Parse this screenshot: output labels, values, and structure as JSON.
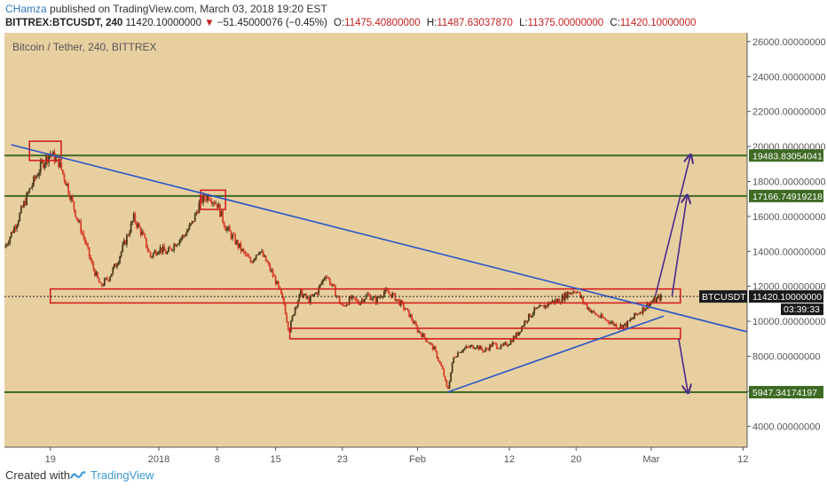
{
  "header": {
    "author": "CHamza",
    "published_text": "published on TradingView.com, March 03, 2018 19:20 EST",
    "symbol": "BITTREX:BTCUSDT, 240",
    "last": "11420.10000000",
    "change": "−51.45000076 (−0.45%)",
    "open_label": "O:",
    "open": "11475.40800000",
    "high_label": "H:",
    "high": "11487.63037870",
    "low_label": "L:",
    "low": "11375.00000000",
    "close_label": "C:",
    "close": "11420.10000000"
  },
  "pair_title": "Bitcoin / Tether, 240, BITTREX",
  "footer": {
    "created": "Created with",
    "brand": "TradingView"
  },
  "colors": {
    "background": "#e8cfa0",
    "trendline": "#2855c8",
    "box": "#d42020",
    "hline": "#3e6b24",
    "arrow": "#4a2a8a",
    "candle_up": "#4b3b1c",
    "candle_down": "#d7402a"
  },
  "chart_data": {
    "type": "candlestick",
    "ylim": [
      2800,
      26500
    ],
    "y_ticks": [
      4000,
      6000,
      8000,
      10000,
      12000,
      14000,
      16000,
      18000,
      20000,
      22000,
      24000,
      26000
    ],
    "y_tick_labels": [
      "4000.00000000",
      "6000.00000000",
      "8000.00000000",
      "10000.00000000",
      "12000.00000000",
      "14000.00000000",
      "16000.00000000",
      "18000.00000000",
      "20000.00000000",
      "22000.00000000",
      "24000.00000000",
      "26000.00000000"
    ],
    "x_ticks": [
      {
        "label": "19",
        "day": 19
      },
      {
        "label": "2018",
        "day": 32
      },
      {
        "label": "8",
        "day": 39
      },
      {
        "label": "15",
        "day": 46
      },
      {
        "label": "23",
        "day": 54
      },
      {
        "label": "Feb",
        "day": 63
      },
      {
        "label": "12",
        "day": 74
      },
      {
        "label": "20",
        "day": 82
      },
      {
        "label": "Mar",
        "day": 91
      },
      {
        "label": "12",
        "day": 102
      }
    ],
    "x_range_days": [
      13.5,
      102.5
    ],
    "price_path": [
      [
        13.5,
        14200
      ],
      [
        15,
        15700
      ],
      [
        16.5,
        17500
      ],
      [
        18,
        19000
      ],
      [
        19,
        19600
      ],
      [
        20,
        19100
      ],
      [
        21,
        17800
      ],
      [
        22,
        16200
      ],
      [
        23,
        14800
      ],
      [
        24,
        13200
      ],
      [
        25,
        12000
      ],
      [
        26,
        12500
      ],
      [
        27,
        13400
      ],
      [
        28,
        14600
      ],
      [
        29,
        15900
      ],
      [
        30,
        15000
      ],
      [
        31,
        13700
      ],
      [
        32,
        14200
      ],
      [
        33,
        13900
      ],
      [
        34,
        14500
      ],
      [
        35,
        14900
      ],
      [
        36,
        15600
      ],
      [
        37,
        16900
      ],
      [
        38,
        17200
      ],
      [
        39,
        16700
      ],
      [
        40,
        15400
      ],
      [
        41,
        14700
      ],
      [
        42,
        14000
      ],
      [
        43,
        13400
      ],
      [
        44,
        14100
      ],
      [
        45,
        13300
      ],
      [
        46,
        12300
      ],
      [
        47,
        11000
      ],
      [
        47.6,
        9400
      ],
      [
        48.3,
        10800
      ],
      [
        49,
        11600
      ],
      [
        50,
        11200
      ],
      [
        51,
        11700
      ],
      [
        52,
        12700
      ],
      [
        53,
        11800
      ],
      [
        54,
        10800
      ],
      [
        55,
        11300
      ],
      [
        56,
        11100
      ],
      [
        57,
        11500
      ],
      [
        58,
        11200
      ],
      [
        59,
        11700
      ],
      [
        60,
        11500
      ],
      [
        61,
        11000
      ],
      [
        62,
        10400
      ],
      [
        63,
        9500
      ],
      [
        64,
        9000
      ],
      [
        65,
        8400
      ],
      [
        66,
        7200
      ],
      [
        66.6,
        6000
      ],
      [
        67.3,
        7900
      ],
      [
        68,
        8300
      ],
      [
        69,
        8500
      ],
      [
        70,
        8600
      ],
      [
        71,
        8300
      ],
      [
        72,
        8700
      ],
      [
        73,
        8500
      ],
      [
        74,
        8800
      ],
      [
        75,
        9300
      ],
      [
        76,
        10100
      ],
      [
        77,
        10600
      ],
      [
        78,
        10800
      ],
      [
        79,
        11100
      ],
      [
        80,
        11200
      ],
      [
        81,
        11600
      ],
      [
        82,
        11800
      ],
      [
        83,
        11000
      ],
      [
        84,
        10500
      ],
      [
        85,
        10200
      ],
      [
        86,
        10000
      ],
      [
        87,
        9700
      ],
      [
        88,
        9800
      ],
      [
        89,
        10300
      ],
      [
        90,
        10700
      ],
      [
        91,
        11100
      ],
      [
        92.3,
        11420
      ]
    ],
    "last_price": 11420.1,
    "symbol_label": "BTCUSDT",
    "price_label": "11420.10000000",
    "countdown_label": "03:39:33",
    "horizontal_levels": [
      {
        "value": 19483.83054041,
        "label": "19483.83054041"
      },
      {
        "value": 17166.74919218,
        "label": "17166.74919218"
      },
      {
        "value": 5947.34174197,
        "label": "5947.34174197"
      }
    ],
    "trendlines": [
      {
        "from": [
          14.3,
          20100
        ],
        "to": [
          102.5,
          9400
        ]
      },
      {
        "from": [
          66.6,
          5947
        ],
        "to": [
          92.5,
          10300
        ]
      }
    ],
    "boxes": [
      {
        "x0": 16.5,
        "x1": 20.3,
        "y0": 19200,
        "y1": 20300
      },
      {
        "x0": 37.0,
        "x1": 40.0,
        "y0": 16400,
        "y1": 17500
      },
      {
        "x0": 19.0,
        "x1": 94.5,
        "y0": 11050,
        "y1": 11850
      },
      {
        "x0": 47.7,
        "x1": 94.5,
        "y0": 9000,
        "y1": 9600
      }
    ],
    "arrows": [
      {
        "from": [
          91.5,
          11450
        ],
        "to": [
          95.7,
          19480
        ]
      },
      {
        "from": [
          93.5,
          11450
        ],
        "to": [
          95.3,
          17170
        ]
      },
      {
        "from": [
          94.3,
          9000
        ],
        "to": [
          95.4,
          5950
        ]
      }
    ]
  }
}
